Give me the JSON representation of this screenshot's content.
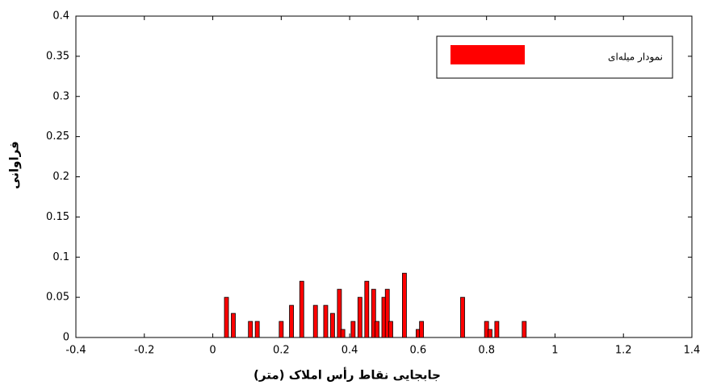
{
  "chart_data": {
    "type": "bar",
    "x_label": "جابجایی نقاط رأس املاک (متر)",
    "y_label": "فراوانی",
    "x": [
      0.04,
      0.06,
      0.11,
      0.13,
      0.2,
      0.23,
      0.26,
      0.3,
      0.33,
      0.35,
      0.37,
      0.38,
      0.41,
      0.43,
      0.45,
      0.47,
      0.48,
      0.5,
      0.51,
      0.52,
      0.56,
      0.6,
      0.61,
      0.73,
      0.8,
      0.81,
      0.83,
      0.91
    ],
    "series": [
      {
        "name": "نمودار میله‌ای",
        "color": "#ff0000",
        "values": [
          0.05,
          0.03,
          0.02,
          0.02,
          0.02,
          0.04,
          0.07,
          0.04,
          0.04,
          0.03,
          0.06,
          0.01,
          0.02,
          0.05,
          0.07,
          0.06,
          0.02,
          0.05,
          0.06,
          0.02,
          0.08,
          0.01,
          0.02,
          0.05,
          0.02,
          0.01,
          0.02,
          0.02
        ]
      }
    ],
    "xlim": [
      -0.4,
      1.4
    ],
    "xticks": [
      -0.4,
      -0.2,
      0,
      0.2,
      0.4,
      0.6,
      0.8,
      1,
      1.2,
      1.4
    ],
    "ylim": [
      0,
      0.4
    ],
    "yticks": [
      0,
      0.05,
      0.1,
      0.15,
      0.2,
      0.25,
      0.3,
      0.35,
      0.4
    ],
    "grid": false,
    "legend": "northeast"
  }
}
